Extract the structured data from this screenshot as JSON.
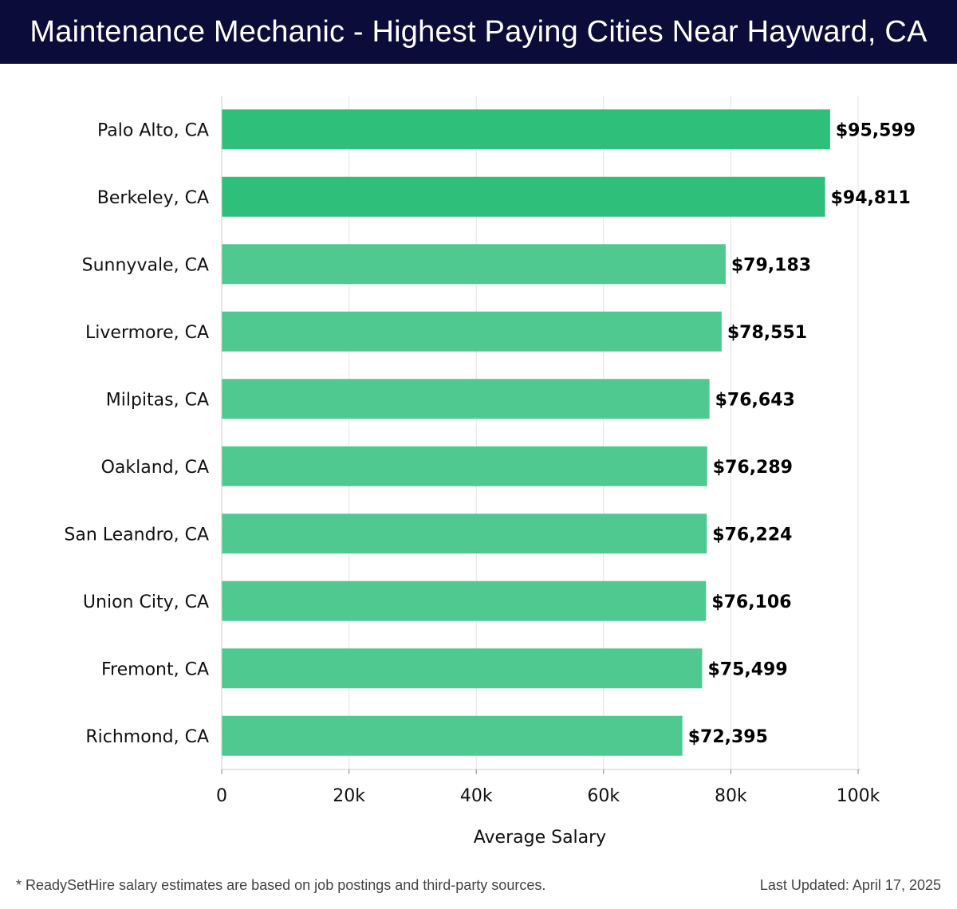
{
  "header": {
    "title": "Maintenance Mechanic - Highest Paying Cities Near Hayward, CA"
  },
  "chart_data": {
    "type": "bar",
    "orientation": "horizontal",
    "categories": [
      "Palo Alto, CA",
      "Berkeley, CA",
      "Sunnyvale, CA",
      "Livermore, CA",
      "Milpitas, CA",
      "Oakland, CA",
      "San Leandro, CA",
      "Union City, CA",
      "Fremont, CA",
      "Richmond, CA"
    ],
    "values": [
      95599,
      94811,
      79183,
      78551,
      76643,
      76289,
      76224,
      76106,
      75499,
      72395
    ],
    "value_labels": [
      "$95,599",
      "$94,811",
      "$79,183",
      "$78,551",
      "$76,643",
      "$76,289",
      "$76,224",
      "$76,106",
      "$75,499",
      "$72,395"
    ],
    "xlabel": "Average Salary",
    "xlim": [
      0,
      100000
    ],
    "xticks": [
      0,
      20000,
      40000,
      60000,
      80000,
      100000
    ],
    "xtick_labels": [
      "0",
      "20k",
      "40k",
      "60k",
      "80k",
      "100k"
    ],
    "grid": true,
    "colors": {
      "top_bar": "#2ebf7a",
      "bar": "#50c990"
    }
  },
  "footer": {
    "note": "* ReadySetHire salary estimates are based on job postings and third-party sources.",
    "updated": "Last Updated: April 17, 2025"
  }
}
